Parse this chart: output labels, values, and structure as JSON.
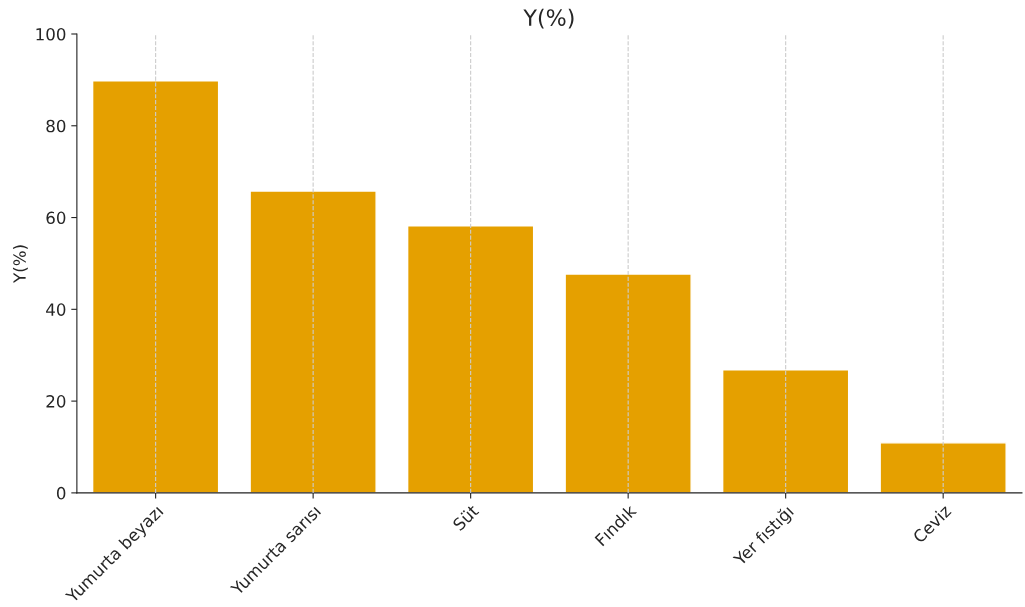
{
  "chart_data": {
    "type": "bar",
    "title": "Y(%)",
    "ylabel": "Y(%)",
    "categories": [
      "Yumurta beyazı",
      "Yumurta sarısı",
      "Süt",
      "Fındık",
      "Yer fıstığı",
      "Ceviz"
    ],
    "values": [
      89.8,
      65.8,
      58.2,
      47.7,
      26.8,
      10.9
    ],
    "color": "#e5a000",
    "ylim": [
      0,
      100
    ],
    "yticks": [
      0,
      20,
      40,
      60,
      80,
      100
    ],
    "grid": "x"
  }
}
